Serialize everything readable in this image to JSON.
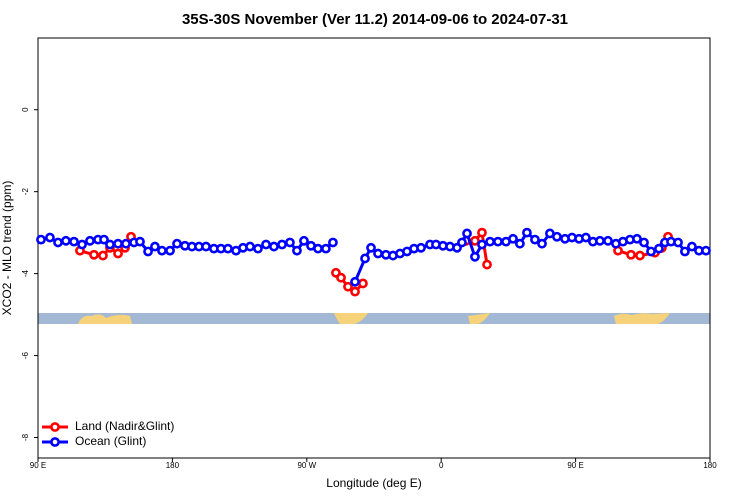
{
  "chart_data": {
    "type": "line",
    "title": "35S-30S November (Ver 11.2)   2014-09-06 to 2024-07-31",
    "xlabel": "Longitude (deg E)",
    "ylabel": "XCO2 - MLO trend (ppm)",
    "xlim": [
      90,
      540
    ],
    "xticks": [
      {
        "value": 90,
        "label": "90 E"
      },
      180,
      {
        "value": 270,
        "label": "90 W"
      },
      {
        "value": 360,
        "label": "0"
      },
      {
        "value": 450,
        "label": "90 E"
      },
      {
        "value": 540,
        "label": "180"
      }
    ],
    "ylim": [
      -8.5,
      1.75
    ],
    "yticks": [
      0,
      -2,
      -4,
      -6,
      -8
    ],
    "legend": "bottom-left",
    "series": [
      {
        "name": "Land (Nadir&Glint)",
        "color": "#ff0000",
        "x": [
          118.1,
          127.5,
          133.5,
          138.2,
          143.6,
          148.3,
          152.3,
          null,
          289.5,
          292.9,
          297.6,
          302.3,
          307.6,
          null,
          376.6,
          382.6,
          387.3,
          390.7,
          null,
          478.4,
          487.1,
          493.1,
          503.1,
          507.8,
          511.9
        ],
        "values": [
          -3.44,
          -3.54,
          -3.56,
          -3.37,
          -3.51,
          -3.37,
          -3.1,
          null,
          -3.98,
          -4.1,
          -4.32,
          -4.44,
          -4.24,
          null,
          -3.2,
          -3.2,
          -3.0,
          -3.78,
          null,
          -3.44,
          -3.54,
          -3.56,
          -3.49,
          -3.37,
          -3.1
        ]
      },
      {
        "name": "Ocean (Glint)",
        "color": "#0000ff",
        "x": [
          92.0,
          98.0,
          103.4,
          108.7,
          114.1,
          119.5,
          124.8,
          130.2,
          134.2,
          138.2,
          143.6,
          148.9,
          154.3,
          158.3,
          163.7,
          168.3,
          173.0,
          178.4,
          183.1,
          188.4,
          193.1,
          197.8,
          202.5,
          207.8,
          212.5,
          217.2,
          222.6,
          227.3,
          232.0,
          237.3,
          242.7,
          248.0,
          253.4,
          258.7,
          263.4,
          268.1,
          272.8,
          277.5,
          282.8,
          287.5,
          null,
          302.3,
          309.0,
          313.0,
          317.7,
          323.0,
          327.7,
          332.4,
          337.1,
          341.8,
          346.5,
          352.5,
          356.5,
          361.2,
          365.9,
          370.6,
          373.9,
          377.3,
          382.6,
          387.3,
          392.7,
          398.0,
          403.4,
          408.1,
          412.7,
          417.4,
          422.8,
          427.5,
          432.8,
          437.5,
          442.9,
          447.6,
          452.3,
          456.9,
          461.6,
          466.3,
          471.7,
          477.0,
          481.7,
          486.4,
          491.1,
          495.8,
          500.5,
          505.8,
          509.8,
          513.9,
          518.6,
          523.2,
          527.9,
          532.6,
          537.3
        ],
        "values": [
          -3.17,
          -3.12,
          -3.24,
          -3.2,
          -3.22,
          -3.29,
          -3.2,
          -3.17,
          -3.17,
          -3.29,
          -3.27,
          -3.27,
          -3.24,
          -3.22,
          -3.46,
          -3.34,
          -3.44,
          -3.44,
          -3.27,
          -3.32,
          -3.34,
          -3.34,
          -3.34,
          -3.39,
          -3.39,
          -3.39,
          -3.44,
          -3.37,
          -3.34,
          -3.39,
          -3.29,
          -3.34,
          -3.29,
          -3.24,
          -3.44,
          -3.2,
          -3.32,
          -3.39,
          -3.39,
          -3.24,
          null,
          -4.2,
          -3.63,
          -3.37,
          -3.51,
          -3.54,
          -3.56,
          -3.51,
          -3.46,
          -3.39,
          -3.37,
          -3.29,
          -3.29,
          -3.32,
          -3.34,
          -3.37,
          -3.24,
          -3.02,
          -3.59,
          -3.29,
          -3.22,
          -3.22,
          -3.22,
          -3.15,
          -3.27,
          -3.0,
          -3.17,
          -3.27,
          -3.02,
          -3.1,
          -3.15,
          -3.12,
          -3.15,
          -3.12,
          -3.22,
          -3.2,
          -3.2,
          -3.27,
          -3.22,
          -3.17,
          -3.15,
          -3.24,
          -3.46,
          -3.39,
          -3.24,
          -3.22,
          -3.24,
          -3.46,
          -3.34,
          -3.44,
          -3.44
        ]
      }
    ]
  }
}
